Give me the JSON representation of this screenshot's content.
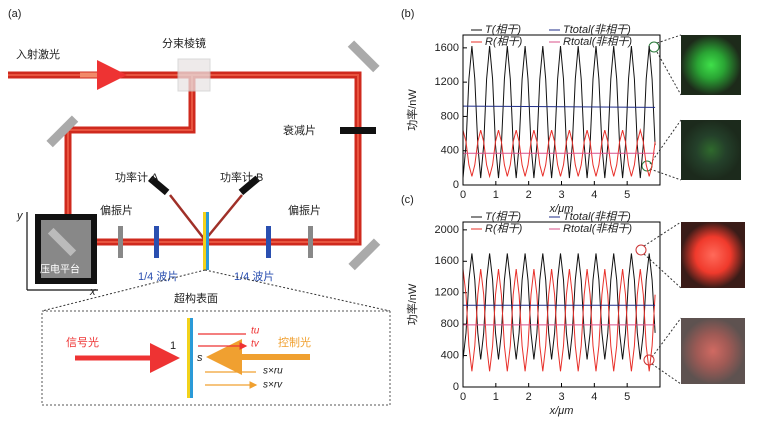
{
  "diagram": {
    "label": "(a)",
    "incident": "入射激光",
    "splitter": "分束棱镜",
    "attenuator": "衰减片",
    "meter_a": "功率计 A",
    "meter_b": "功率计 B",
    "polarizer_left": "偏振片",
    "polarizer_right": "偏振片",
    "waveplate_left": "1/4 波片",
    "waveplate_right": "1/4 波片",
    "stage": "压电平台",
    "axis_y": "y",
    "axis_x": "x",
    "metasurface": "超构表面",
    "inset": {
      "signal": "信号光",
      "control": "控制光",
      "one": "1",
      "s": "s",
      "tu": "tu",
      "tv": "tv",
      "sru": "s×ru",
      "srv": "s×rv"
    }
  },
  "chart_data": [
    {
      "type": "line",
      "label": "(b)",
      "xlabel": "x/μm",
      "ylabel": "功率/nW",
      "xlim": [
        0,
        6
      ],
      "ylim": [
        0,
        1750
      ],
      "xticks": [
        0,
        1,
        2,
        3,
        4,
        5
      ],
      "yticks": [
        0,
        400,
        800,
        1200,
        1600
      ],
      "x": [
        0,
        0.09,
        0.18,
        0.27,
        0.36,
        0.45,
        0.54,
        0.63,
        0.72,
        0.81,
        0.9,
        0.99,
        1.08,
        1.17,
        1.26,
        1.35,
        1.44,
        1.53,
        1.62,
        1.71,
        1.8,
        1.89,
        1.98,
        2.07,
        2.16,
        2.25,
        2.34,
        2.43,
        2.52,
        2.61,
        2.7,
        2.79,
        2.88,
        2.97,
        3.06,
        3.15,
        3.24,
        3.33,
        3.42,
        3.51,
        3.6,
        3.69,
        3.78,
        3.87,
        3.96,
        4.05,
        4.14,
        4.23,
        4.32,
        4.41,
        4.5,
        4.59,
        4.68,
        4.77,
        4.86,
        4.95,
        5.04,
        5.13,
        5.22,
        5.31,
        5.4,
        5.49,
        5.58,
        5.67,
        5.76,
        5.85
      ],
      "series": [
        {
          "name": "T(相干)",
          "color": "#111111",
          "values": [
            80,
            465,
            1235,
            1620,
            1235,
            465,
            80,
            465,
            1235,
            1620,
            1235,
            465,
            80,
            465,
            1235,
            1620,
            1235,
            465,
            80,
            465,
            1235,
            1620,
            1235,
            465,
            80,
            465,
            1235,
            1620,
            1235,
            465,
            80,
            465,
            1235,
            1620,
            1235,
            465,
            80,
            465,
            1235,
            1620,
            1235,
            465,
            80,
            465,
            1235,
            1620,
            1235,
            465,
            80,
            465,
            1235,
            1620,
            1235,
            465,
            80,
            465,
            1235,
            1620,
            1235,
            465,
            80,
            465,
            1235,
            1620,
            1235,
            465
          ]
        },
        {
          "name": "R(相干)",
          "color": "#e8302a",
          "values": [
            640,
            505,
            235,
            100,
            235,
            505,
            640,
            505,
            235,
            100,
            235,
            505,
            640,
            505,
            235,
            100,
            235,
            505,
            640,
            505,
            235,
            100,
            235,
            505,
            640,
            505,
            235,
            100,
            235,
            505,
            640,
            505,
            235,
            100,
            235,
            505,
            640,
            505,
            235,
            100,
            235,
            505,
            640,
            505,
            235,
            100,
            235,
            505,
            640,
            505,
            235,
            100,
            235,
            505,
            640,
            505,
            235,
            100,
            235,
            505,
            640,
            505,
            235,
            100,
            235,
            505
          ]
        },
        {
          "name": "Ttotal(非相干)",
          "color": "#1f2d8a",
          "x": [
            0,
            5.85
          ],
          "values": [
            920,
            905
          ]
        },
        {
          "name": "Rtotal(非相干)",
          "color": "#d9508a",
          "x": [
            0,
            5.85
          ],
          "values": [
            370,
            370
          ]
        }
      ]
    },
    {
      "type": "line",
      "label": "(c)",
      "xlabel": "x/μm",
      "ylabel": "功率/nW",
      "xlim": [
        0,
        6
      ],
      "ylim": [
        0,
        2100
      ],
      "xticks": [
        0,
        1,
        2,
        3,
        4,
        5
      ],
      "yticks": [
        0,
        400,
        800,
        1200,
        1600,
        2000
      ],
      "x": [
        0,
        0.09,
        0.18,
        0.27,
        0.36,
        0.45,
        0.54,
        0.63,
        0.72,
        0.81,
        0.9,
        0.99,
        1.08,
        1.17,
        1.26,
        1.35,
        1.44,
        1.53,
        1.62,
        1.71,
        1.8,
        1.89,
        1.98,
        2.07,
        2.16,
        2.25,
        2.34,
        2.43,
        2.52,
        2.61,
        2.7,
        2.79,
        2.88,
        2.97,
        3.06,
        3.15,
        3.24,
        3.33,
        3.42,
        3.51,
        3.6,
        3.69,
        3.78,
        3.87,
        3.96,
        4.05,
        4.14,
        4.23,
        4.32,
        4.41,
        4.5,
        4.59,
        4.68,
        4.77,
        4.86,
        4.95,
        5.04,
        5.13,
        5.22,
        5.31,
        5.4,
        5.49,
        5.58,
        5.67,
        5.76,
        5.85
      ],
      "series": [
        {
          "name": "T(相干)",
          "color": "#111111",
          "values": [
            350,
            688,
            1363,
            1700,
            1363,
            688,
            350,
            688,
            1363,
            1700,
            1363,
            688,
            350,
            688,
            1363,
            1700,
            1363,
            688,
            350,
            688,
            1363,
            1700,
            1363,
            688,
            350,
            688,
            1363,
            1700,
            1363,
            688,
            350,
            688,
            1363,
            1700,
            1363,
            688,
            350,
            688,
            1363,
            1700,
            1363,
            688,
            350,
            688,
            1363,
            1700,
            1363,
            688,
            350,
            688,
            1363,
            1700,
            1363,
            688,
            350,
            688,
            1363,
            1700,
            1363,
            688,
            350,
            688,
            1363,
            1700,
            1363,
            688
          ]
        },
        {
          "name": "R(相干)",
          "color": "#e8302a",
          "values": [
            1500,
            1175,
            525,
            200,
            525,
            1175,
            1500,
            1175,
            525,
            200,
            525,
            1175,
            1500,
            1175,
            525,
            200,
            525,
            1175,
            1500,
            1175,
            525,
            200,
            525,
            1175,
            1500,
            1175,
            525,
            200,
            525,
            1175,
            1500,
            1175,
            525,
            200,
            525,
            1175,
            1500,
            1175,
            525,
            200,
            525,
            1175,
            1500,
            1175,
            525,
            200,
            525,
            1175,
            1500,
            1175,
            525,
            200,
            525,
            1175,
            1500,
            1175,
            525,
            200,
            525,
            1175,
            1500,
            1175,
            525,
            200,
            525,
            1175
          ]
        },
        {
          "name": "Ttotal(非相干)",
          "color": "#1f2d8a",
          "x": [
            0,
            5.85
          ],
          "values": [
            1040,
            1040
          ]
        },
        {
          "name": "Rtotal(非相干)",
          "color": "#d9508a",
          "x": [
            0,
            5.85
          ],
          "values": [
            790,
            790
          ]
        }
      ]
    }
  ]
}
